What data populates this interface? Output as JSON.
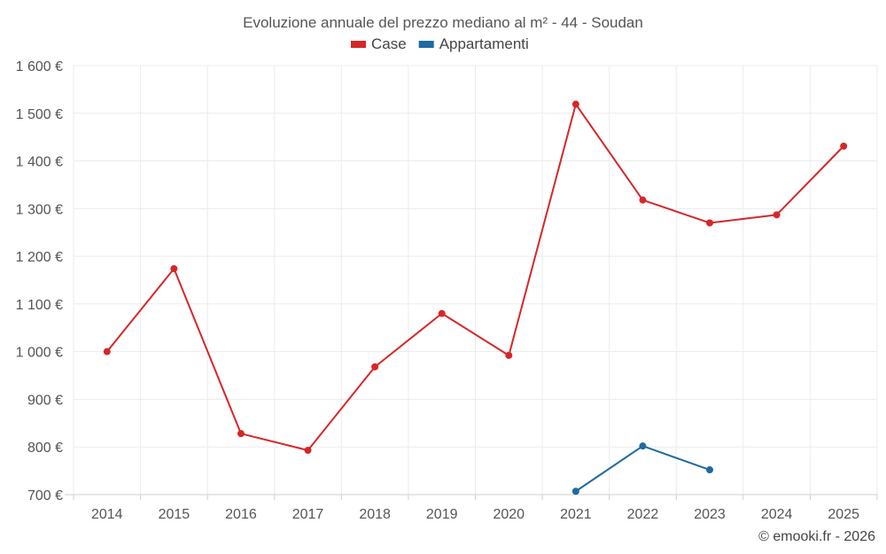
{
  "chart_data": {
    "type": "line",
    "title": "Evoluzione annuale del prezzo mediano al m² - 44 - Soudan",
    "categories": [
      "2014",
      "2015",
      "2016",
      "2017",
      "2018",
      "2019",
      "2020",
      "2021",
      "2022",
      "2023",
      "2024",
      "2025"
    ],
    "series": [
      {
        "name": "Case",
        "color": "#d62728",
        "values": [
          1000,
          1174,
          828,
          793,
          968,
          1080,
          992,
          1519,
          1318,
          1270,
          1287,
          1431
        ]
      },
      {
        "name": "Appartamenti",
        "color": "#1f6aa0",
        "values": [
          null,
          null,
          null,
          null,
          null,
          null,
          null,
          707,
          802,
          752,
          null,
          null
        ]
      }
    ],
    "ylim": [
      700,
      1600
    ],
    "yticks": [
      700,
      800,
      900,
      1000,
      1100,
      1200,
      1300,
      1400,
      1500,
      1600
    ],
    "ytick_labels": [
      "700 €",
      "800 €",
      "900 €",
      "1 000 €",
      "1 100 €",
      "1 200 €",
      "1 300 €",
      "1 400 €",
      "1 500 €",
      "1 600 €"
    ],
    "xlabel": "",
    "ylabel": "",
    "grid": true,
    "legend_position": "top-center"
  },
  "credit": "© emooki.fr - 2026"
}
